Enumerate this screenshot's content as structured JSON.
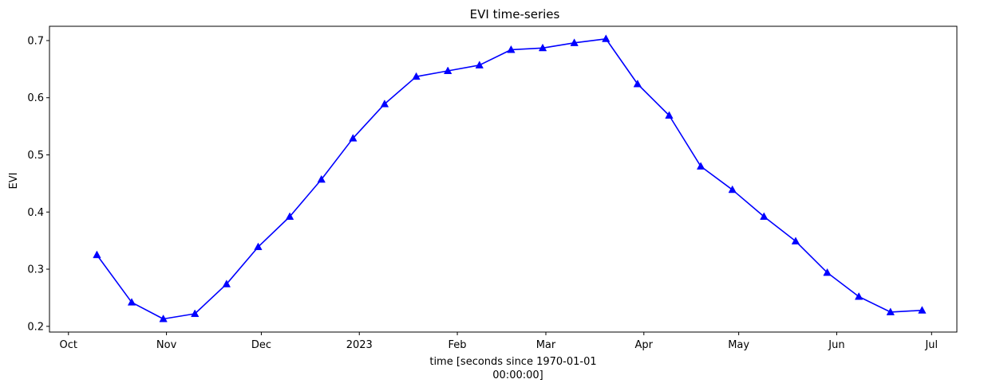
{
  "chart_data": {
    "type": "line",
    "title": "EVI time-series",
    "xlabel_lines": [
      "time [seconds since 1970-01-01",
      "00:00:00]"
    ],
    "ylabel": "EVI",
    "x_tick_labels": [
      "Oct",
      "Nov",
      "Dec",
      "2023",
      "Feb",
      "Mar",
      "Apr",
      "May",
      "Jun",
      "Jul"
    ],
    "x_tick_dates": [
      "2022-10-01",
      "2022-11-01",
      "2022-12-01",
      "2023-01-01",
      "2023-02-01",
      "2023-03-01",
      "2023-04-01",
      "2023-05-01",
      "2023-06-01",
      "2023-07-01"
    ],
    "y_tick_labels": [
      "0.2",
      "0.3",
      "0.4",
      "0.5",
      "0.6",
      "0.7"
    ],
    "y_ticks": [
      0.2,
      0.3,
      0.4,
      0.5,
      0.6,
      0.7
    ],
    "xlim": [
      "2022-09-25",
      "2023-07-09"
    ],
    "ylim": [
      0.19,
      0.725
    ],
    "grid": false,
    "series": [
      {
        "color": "#0000ff",
        "marker": "triangle-up",
        "x": [
          "2022-10-10",
          "2022-10-21",
          "2022-10-31",
          "2022-11-10",
          "2022-11-20",
          "2022-11-30",
          "2022-12-10",
          "2022-12-20",
          "2022-12-30",
          "2023-01-09",
          "2023-01-19",
          "2023-01-29",
          "2023-02-08",
          "2023-02-18",
          "2023-02-28",
          "2023-03-10",
          "2023-03-20",
          "2023-03-30",
          "2023-04-09",
          "2023-04-19",
          "2023-04-29",
          "2023-05-09",
          "2023-05-19",
          "2023-05-29",
          "2023-06-08",
          "2023-06-18",
          "2023-06-28"
        ],
        "values": [
          0.325,
          0.242,
          0.213,
          0.222,
          0.274,
          0.339,
          0.392,
          0.457,
          0.529,
          0.589,
          0.637,
          0.647,
          0.657,
          0.684,
          0.687,
          0.696,
          0.703,
          0.624,
          0.569,
          0.48,
          0.439,
          0.392,
          0.349,
          0.294,
          0.252,
          0.225,
          0.228
        ]
      }
    ]
  }
}
